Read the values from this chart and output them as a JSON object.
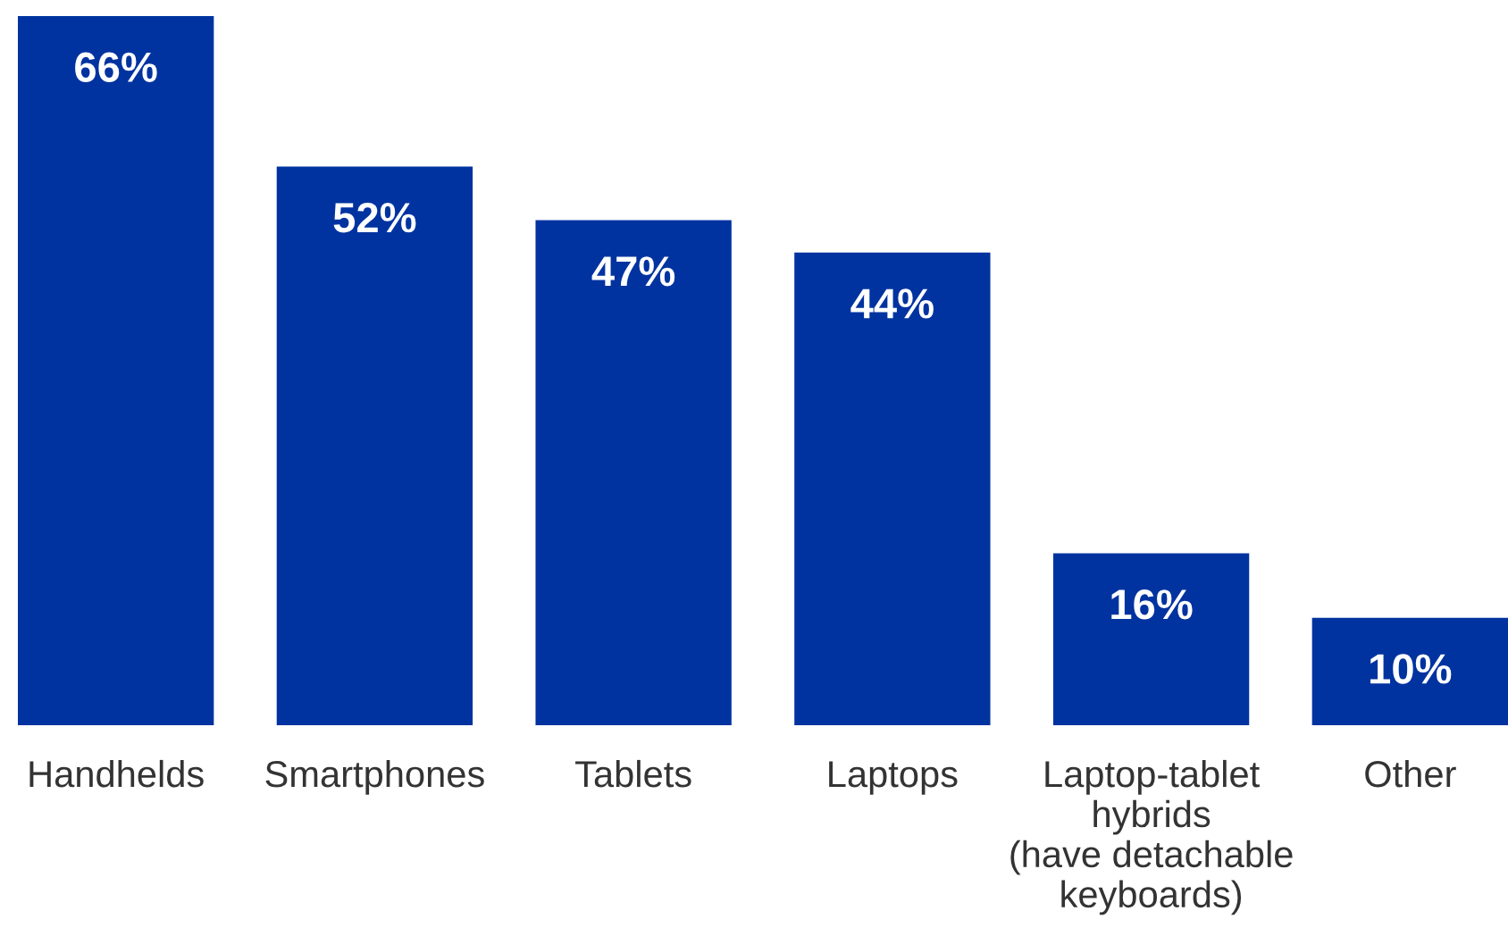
{
  "chart_data": {
    "type": "bar",
    "categories": [
      "Handhelds",
      "Smartphones",
      "Tablets",
      "Laptops",
      "Laptop-tablet\nhybrids\n(have detachable\nkeyboards)",
      "Other"
    ],
    "values": [
      66,
      52,
      47,
      44,
      16,
      10
    ],
    "color": "#0033a0",
    "value_labels": [
      "66%",
      "52%",
      "47%",
      "44%",
      "16%",
      "10%"
    ],
    "grid": false,
    "legend": false
  }
}
